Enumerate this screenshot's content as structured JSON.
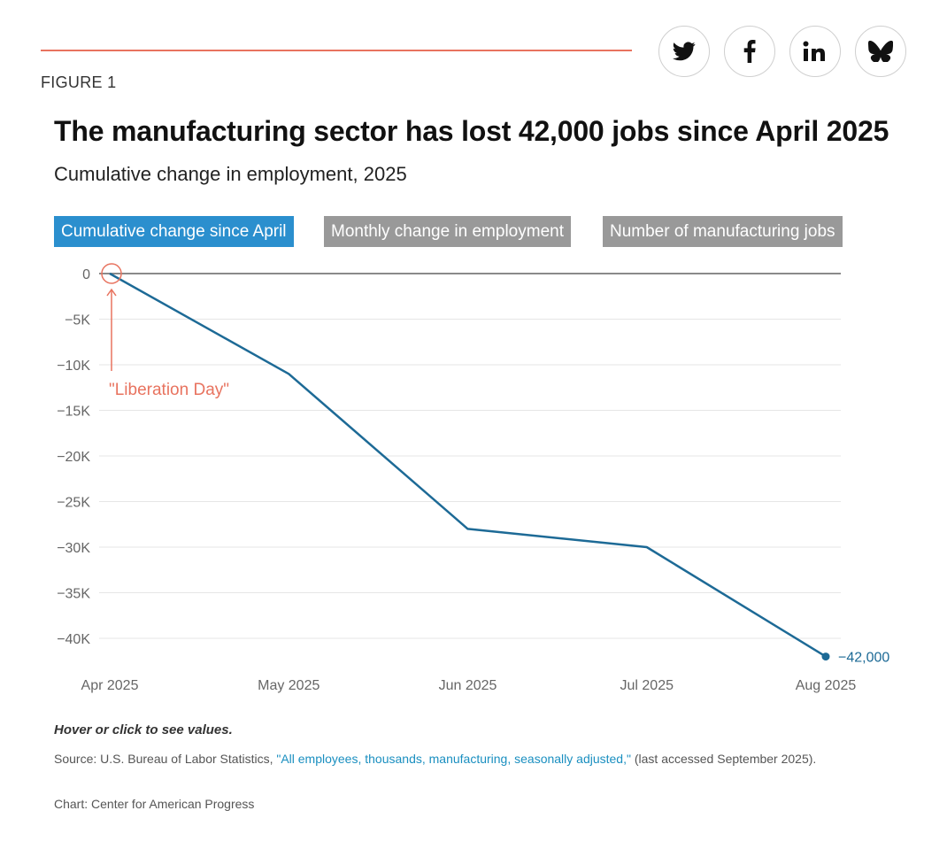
{
  "header": {
    "figure_label": "FIGURE 1"
  },
  "share_buttons": [
    {
      "icon": "twitter-icon"
    },
    {
      "icon": "facebook-icon"
    },
    {
      "icon": "linkedin-icon"
    },
    {
      "icon": "bluesky-icon"
    }
  ],
  "tabs": [
    {
      "label": "Cumulative change since April",
      "active": true
    },
    {
      "label": "Monthly change in employment",
      "active": false
    },
    {
      "label": "Number of manufacturing jobs",
      "active": false
    }
  ],
  "chart_data": {
    "type": "line",
    "title": "The manufacturing sector has lost 42,000 jobs since April 2025",
    "subtitle": "Cumulative change in employment, 2025",
    "categories": [
      "Apr 2025",
      "May 2025",
      "Jun 2025",
      "Jul 2025",
      "Aug 2025"
    ],
    "series": [
      {
        "values": [
          0,
          -11000,
          -28000,
          -30000,
          -42000
        ],
        "color": "#1d6a96"
      }
    ],
    "ylim": [
      -42000,
      0
    ],
    "yticks": [
      0,
      -5000,
      -10000,
      -15000,
      -20000,
      -25000,
      -30000,
      -35000,
      -40000
    ],
    "ytick_labels": [
      "0",
      "−5K",
      "−10K",
      "−15K",
      "−20K",
      "−25K",
      "−30K",
      "−35K",
      "−40K"
    ],
    "grid": true,
    "end_label": "−42,000",
    "annotation": {
      "text": "\"Liberation Day\"",
      "category": "Apr 2025",
      "value": 0,
      "color": "#e8735f"
    }
  },
  "footer": {
    "note": "Hover or click to see values.",
    "source_prefix": "Source: U.S. Bureau of Labor Statistics, ",
    "source_link": "\"All employees, thousands, manufacturing, seasonally adjusted,\"",
    "source_suffix": " (last accessed September 2025).",
    "credit": "Chart: Center for American Progress"
  }
}
